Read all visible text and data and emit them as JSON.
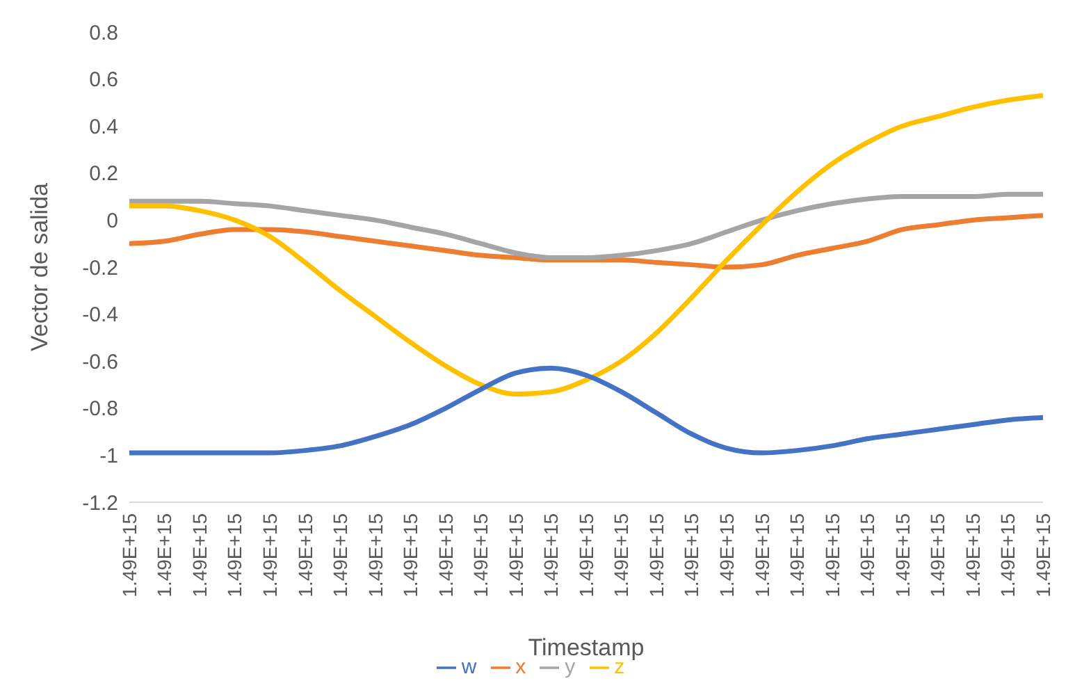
{
  "chart_data": {
    "type": "line",
    "xlabel": "Timestamp",
    "ylabel": "Vector de salida",
    "legend": "bottom",
    "categories": [
      "1.49E+15",
      "1.49E+15",
      "1.49E+15",
      "1.49E+15",
      "1.49E+15",
      "1.49E+15",
      "1.49E+15",
      "1.49E+15",
      "1.49E+15",
      "1.49E+15",
      "1.49E+15",
      "1.49E+15",
      "1.49E+15",
      "1.49E+15",
      "1.49E+15",
      "1.49E+15",
      "1.49E+15",
      "1.49E+15",
      "1.49E+15",
      "1.49E+15",
      "1.49E+15",
      "1.49E+15",
      "1.49E+15",
      "1.49E+15",
      "1.49E+15",
      "1.49E+15",
      "1.49E+15"
    ],
    "ylim": [
      -1.2,
      0.8
    ],
    "yticks": [
      -1.2,
      -1,
      -0.8,
      -0.6,
      -0.4,
      -0.2,
      0,
      0.2,
      0.4,
      0.6,
      0.8
    ],
    "series": [
      {
        "name": "x",
        "color": "#ed7d31",
        "values": [
          -0.1,
          -0.09,
          -0.06,
          -0.04,
          -0.04,
          -0.05,
          -0.07,
          -0.09,
          -0.11,
          -0.13,
          -0.15,
          -0.16,
          -0.17,
          -0.17,
          -0.17,
          -0.18,
          -0.19,
          -0.2,
          -0.19,
          -0.15,
          -0.12,
          -0.09,
          -0.04,
          -0.02,
          0.0,
          0.01,
          0.02
        ]
      },
      {
        "name": "y",
        "color": "#a5a5a5",
        "values": [
          0.08,
          0.08,
          0.08,
          0.07,
          0.06,
          0.04,
          0.02,
          0.0,
          -0.03,
          -0.06,
          -0.1,
          -0.14,
          -0.16,
          -0.16,
          -0.15,
          -0.13,
          -0.1,
          -0.05,
          0.0,
          0.04,
          0.07,
          0.09,
          0.1,
          0.1,
          0.1,
          0.11,
          0.11
        ]
      },
      {
        "name": "z",
        "color": "#ffc000",
        "values": [
          0.06,
          0.06,
          0.04,
          0.0,
          -0.07,
          -0.18,
          -0.3,
          -0.41,
          -0.52,
          -0.62,
          -0.7,
          -0.74,
          -0.73,
          -0.68,
          -0.6,
          -0.48,
          -0.33,
          -0.17,
          -0.02,
          0.12,
          0.24,
          0.33,
          0.4,
          0.44,
          0.48,
          0.51,
          0.53
        ]
      },
      {
        "name": "w",
        "color": "#4472c4",
        "values": [
          -0.99,
          -0.99,
          -0.99,
          -0.99,
          -0.99,
          -0.98,
          -0.96,
          -0.92,
          -0.87,
          -0.8,
          -0.72,
          -0.65,
          -0.63,
          -0.66,
          -0.73,
          -0.82,
          -0.91,
          -0.97,
          -0.99,
          -0.98,
          -0.96,
          -0.93,
          -0.91,
          -0.89,
          -0.87,
          -0.85,
          -0.84
        ]
      }
    ]
  }
}
